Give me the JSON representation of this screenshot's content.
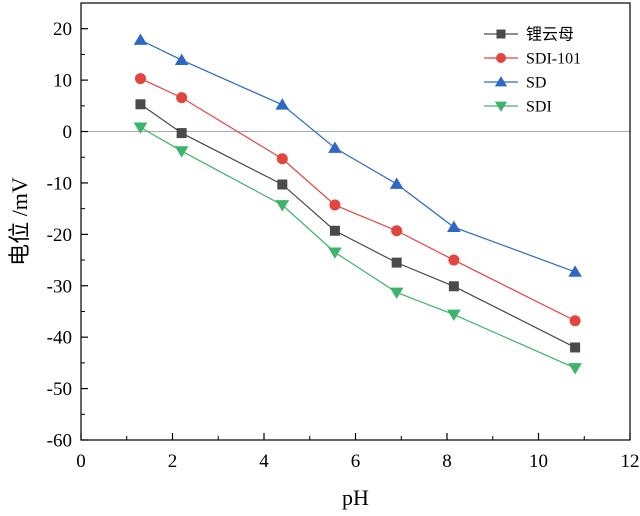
{
  "chart_data": {
    "type": "line",
    "xlabel": "pH",
    "ylabel": "电位 /mV",
    "xlim": [
      0,
      12
    ],
    "ylim": [
      -60,
      25
    ],
    "xticks": [
      0,
      2,
      4,
      6,
      8,
      10,
      12
    ],
    "yticks": [
      -60,
      -50,
      -40,
      -30,
      -20,
      -10,
      0,
      10,
      20
    ],
    "x": [
      1.3,
      2.2,
      4.4,
      5.55,
      6.9,
      8.15,
      10.8
    ],
    "reference_line": {
      "y": 0,
      "color": "#aaaaaa"
    },
    "legend_position": "top-right",
    "grid": false,
    "series": [
      {
        "name": "锂云母",
        "values": [
          5.3,
          -0.3,
          -10.3,
          -19.3,
          -25.5,
          -30.1,
          -42.0
        ],
        "color": "#4a4a4a",
        "marker": "square"
      },
      {
        "name": "SDI-101",
        "values": [
          10.3,
          6.6,
          -5.3,
          -14.3,
          -19.3,
          -25.0,
          -36.8
        ],
        "color": "#e2443e",
        "marker": "circle"
      },
      {
        "name": "SD",
        "values": [
          17.8,
          13.9,
          5.2,
          -3.2,
          -10.2,
          -18.6,
          -27.3
        ],
        "color": "#2c68c4",
        "marker": "triangle-up"
      },
      {
        "name": "SDI",
        "values": [
          0.8,
          -3.8,
          -14.3,
          -23.5,
          -31.3,
          -35.6,
          -46.0
        ],
        "color": "#3fb36a",
        "marker": "triangle-down"
      }
    ]
  }
}
